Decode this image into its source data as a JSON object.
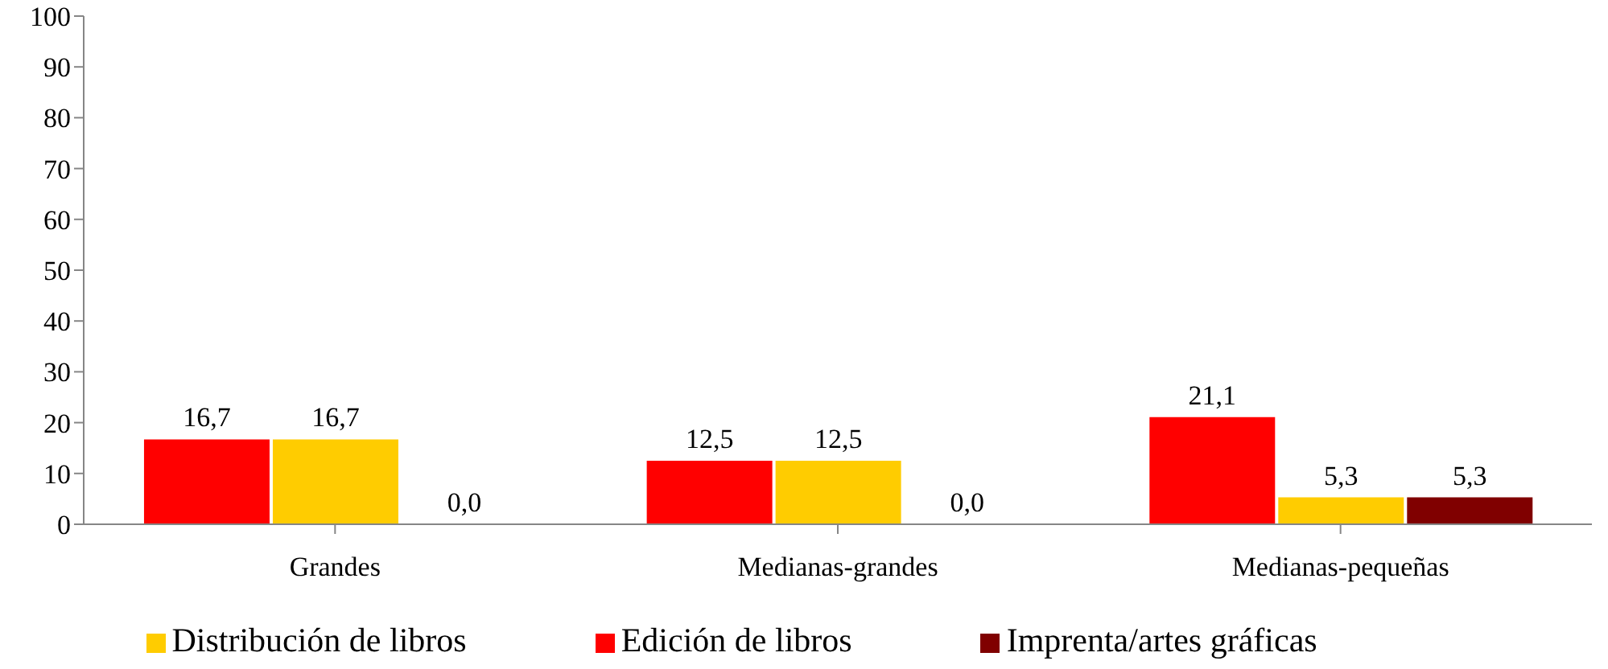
{
  "chart_data": {
    "type": "bar",
    "categories": [
      "Grandes",
      "Medianas-grandes",
      "Medianas-pequeñas"
    ],
    "series": [
      {
        "name": "Edición de libros",
        "color": "#ff0000",
        "values": [
          16.7,
          12.5,
          21.1
        ],
        "value_labels": [
          "16,7",
          "12,5",
          "21,1"
        ]
      },
      {
        "name": "Distribución de libros",
        "color": "#ffcc00",
        "values": [
          16.7,
          12.5,
          5.3
        ],
        "value_labels": [
          "16,7",
          "12,5",
          "5,3"
        ]
      },
      {
        "name": "Imprenta/artes gráficas",
        "color": "#800000",
        "values": [
          0.0,
          0.0,
          5.3
        ],
        "value_labels": [
          "0,0",
          "0,0",
          "5,3"
        ]
      }
    ],
    "ylim": [
      0,
      100
    ],
    "yticks": [
      0,
      10,
      20,
      30,
      40,
      50,
      60,
      70,
      80,
      90,
      100
    ],
    "grid": false,
    "legend": "bottom"
  }
}
